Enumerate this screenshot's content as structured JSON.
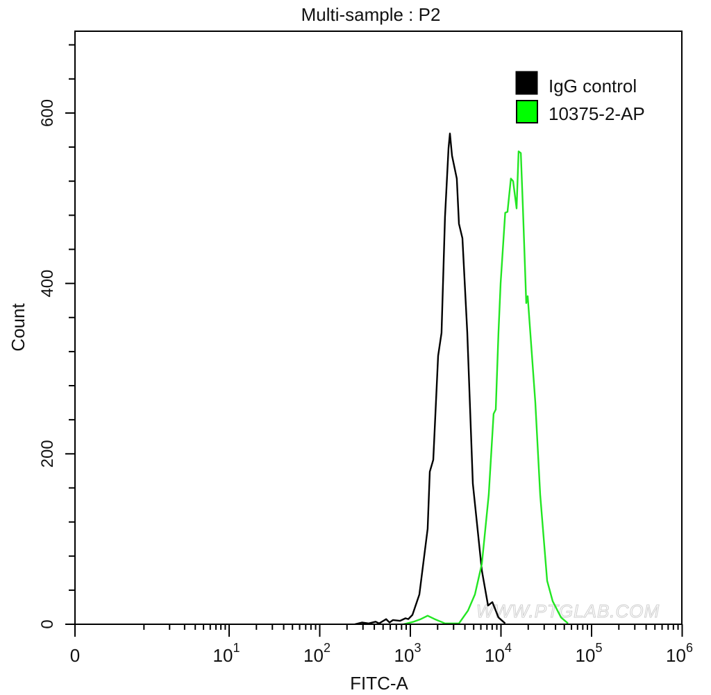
{
  "chart_data": {
    "type": "line",
    "title": "Multi-sample : P2",
    "xlabel": "FITC-A",
    "ylabel": "Count",
    "x_scale": "biexponential (log above 10)",
    "xlim": [
      0,
      1000000
    ],
    "ylim": [
      0,
      696
    ],
    "x_ticks": [
      {
        "value": 0,
        "label": "0",
        "exp": ""
      },
      {
        "value": 10,
        "label": "10",
        "exp": "1"
      },
      {
        "value": 100,
        "label": "10",
        "exp": "2"
      },
      {
        "value": 1000,
        "label": "10",
        "exp": "3"
      },
      {
        "value": 10000,
        "label": "10",
        "exp": "4"
      },
      {
        "value": 100000,
        "label": "10",
        "exp": "5"
      },
      {
        "value": 1000000,
        "label": "10",
        "exp": "6"
      }
    ],
    "y_ticks": [
      {
        "value": 0,
        "label": "0"
      },
      {
        "value": 200,
        "label": "200"
      },
      {
        "value": 400,
        "label": "400"
      },
      {
        "value": 600,
        "label": "600"
      }
    ],
    "y_minor_step": 40,
    "grid": false,
    "legend_position": "top-right",
    "watermark": "WWW.PTGLAB.COM",
    "series": [
      {
        "name": "IgG control",
        "color": "#000000",
        "points": [
          [
            244,
            0
          ],
          [
            292,
            2
          ],
          [
            347,
            1
          ],
          [
            414,
            3
          ],
          [
            452,
            1
          ],
          [
            540,
            6
          ],
          [
            589,
            2
          ],
          [
            643,
            5
          ],
          [
            767,
            4
          ],
          [
            884,
            7
          ],
          [
            948,
            6
          ],
          [
            1054,
            11
          ],
          [
            1258,
            35
          ],
          [
            1553,
            112
          ],
          [
            1638,
            179
          ],
          [
            1790,
            193
          ],
          [
            2024,
            315
          ],
          [
            2210,
            342
          ],
          [
            2414,
            478
          ],
          [
            2640,
            559
          ],
          [
            2733,
            576
          ],
          [
            2883,
            550
          ],
          [
            3258,
            523
          ],
          [
            3437,
            470
          ],
          [
            3756,
            453
          ],
          [
            4246,
            342
          ],
          [
            4898,
            165
          ],
          [
            6154,
            63
          ],
          [
            7208,
            22
          ],
          [
            8035,
            26
          ],
          [
            9380,
            8
          ],
          [
            11130,
            1
          ]
        ]
      },
      {
        "name": "10375-2-AP",
        "color": "#22e622",
        "points": [
          [
            838,
            0
          ],
          [
            1092,
            3
          ],
          [
            1303,
            6
          ],
          [
            1553,
            10
          ],
          [
            1854,
            6
          ],
          [
            2414,
            1
          ],
          [
            3437,
            1
          ],
          [
            4324,
            16
          ],
          [
            5160,
            35
          ],
          [
            6154,
            71
          ],
          [
            7336,
            152
          ],
          [
            8290,
            247
          ],
          [
            8760,
            252
          ],
          [
            9380,
            342
          ],
          [
            9912,
            400
          ],
          [
            11130,
            483
          ],
          [
            11810,
            484
          ],
          [
            12880,
            523
          ],
          [
            13610,
            520
          ],
          [
            14870,
            488
          ],
          [
            15660,
            555
          ],
          [
            16550,
            553
          ],
          [
            17420,
            491
          ],
          [
            19000,
            377
          ],
          [
            19710,
            385
          ],
          [
            21100,
            342
          ],
          [
            23950,
            260
          ],
          [
            27100,
            152
          ],
          [
            32300,
            51
          ],
          [
            37200,
            27
          ],
          [
            46000,
            8
          ],
          [
            55000,
            1
          ]
        ]
      }
    ]
  }
}
